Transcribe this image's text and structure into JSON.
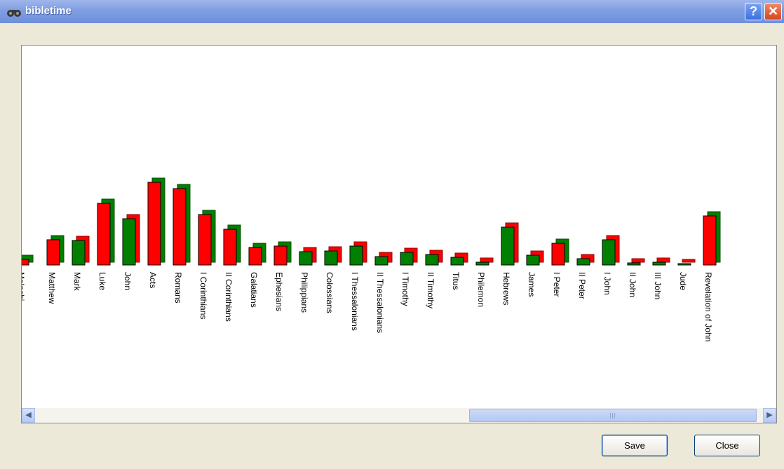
{
  "window": {
    "title": "bibletime",
    "help_label": "?",
    "close_label": "✕"
  },
  "buttons": {
    "save_label": "Save",
    "close_label": "Close"
  },
  "colors": {
    "red": "#ff0000",
    "green": "#008000"
  },
  "chart_data": {
    "type": "bar",
    "categories": [
      "Malachi",
      "Matthew",
      "Mark",
      "Luke",
      "John",
      "Acts",
      "Romans",
      "I Corinthians",
      "II Corinthians",
      "Galatians",
      "Ephesians",
      "Philippians",
      "Colossians",
      "I Thessalonians",
      "II Thessalonians",
      "I Timothy",
      "II Timothy",
      "Titus",
      "Philemon",
      "Hebrews",
      "James",
      "I Peter",
      "II Peter",
      "I John",
      "II John",
      "III John",
      "Jude",
      "Revelation of John"
    ],
    "values": [
      8,
      36,
      35,
      88,
      66,
      118,
      109,
      72,
      51,
      25,
      27,
      19,
      20,
      27,
      12,
      18,
      15,
      11,
      4,
      54,
      14,
      31,
      9,
      36,
      3,
      4,
      2,
      70
    ],
    "colors": [
      "red",
      "red",
      "green",
      "red",
      "green",
      "red",
      "red",
      "red",
      "red",
      "red",
      "red",
      "green",
      "green",
      "green",
      "green",
      "green",
      "green",
      "green",
      "green",
      "green",
      "green",
      "red",
      "green",
      "green",
      "green",
      "green",
      "green",
      "red"
    ],
    "title": "",
    "xlabel": "",
    "ylabel": ""
  }
}
